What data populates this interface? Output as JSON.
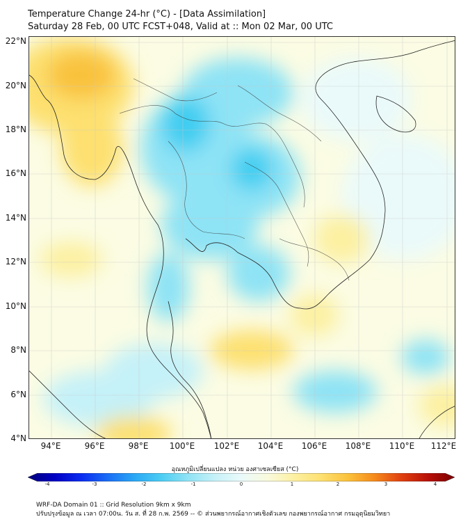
{
  "header": {
    "title_line1": "Temperature Change 24-hr (°C) - [Data Assimilation]",
    "title_line2": "Saturday 28 Feb, 00 UTC FCST+048, Valid at :: Mon 02 Mar, 00 UTC"
  },
  "map": {
    "lat_labels": [
      "22°N",
      "20°N",
      "18°N",
      "16°N",
      "14°N",
      "12°N",
      "10°N",
      "8°N",
      "6°N",
      "4°N"
    ],
    "lon_labels": [
      "94°E",
      "96°E",
      "98°E",
      "100°E",
      "102°E",
      "104°E",
      "106°E",
      "108°E",
      "110°E",
      "112°E"
    ],
    "colors": {
      "background": "#fbfce3",
      "ocean_pale": "#f4fbf8",
      "cool": "#8ee3f5",
      "cold": "#3fcdf1",
      "warm": "#fde070",
      "hot": "#f9c23c",
      "coast": "#222222"
    }
  },
  "colorbar": {
    "title": "อุณหภูมิเปลี่ยนแปลง หน่วย องศาเซลเซียส (°C)",
    "ticks": [
      "-4",
      "-3",
      "-2",
      "-1",
      "0",
      "1",
      "2",
      "3",
      "4"
    ],
    "colors": [
      "#00007a",
      "#0000c4",
      "#0a2cf0",
      "#1a6ef5",
      "#2aa8f5",
      "#4ccdf3",
      "#8fe3f5",
      "#c5f1f8",
      "#eafafa",
      "#fafadc",
      "#fcf0a0",
      "#fde070",
      "#fbc23c",
      "#f58a1c",
      "#e04010",
      "#b81008",
      "#7a0000"
    ]
  },
  "footer": {
    "line1": "WRF-DA Domain 01 :: Grid Resolution 9km x 9km",
    "line2": "ปรับปรุงข้อมูล ณ เวลา 07:00น. วัน ส. ที่ 28 ก.พ. 2569 -- © ส่วนพยากรณ์อากาศเชิงตัวเลข กองพยากรณ์อากาศ กรมอุตุนิยมวิทยา"
  }
}
